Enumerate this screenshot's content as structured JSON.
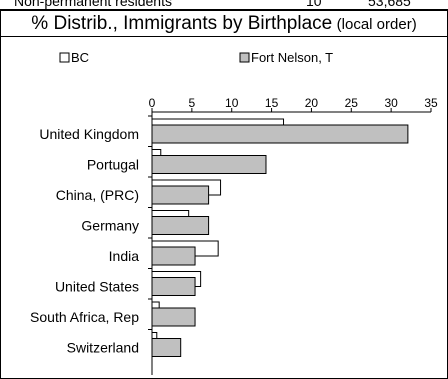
{
  "header_row": {
    "label": "Non-permanent residents",
    "value_local": "10",
    "value_bc": "53,685"
  },
  "chart_data": {
    "type": "bar",
    "orientation": "horizontal",
    "title": "% Distrib., Immigrants by Birthplace",
    "subtitle": "(local order)",
    "xlim": [
      0,
      35
    ],
    "xticks": [
      0,
      5,
      10,
      15,
      20,
      25,
      30,
      35
    ],
    "legend_position": "top",
    "categories": [
      "United Kingdom",
      "Portugal",
      "China, (PRC)",
      "Germany",
      "India",
      "United States",
      "South Africa, Rep",
      "Switzerland"
    ],
    "series": [
      {
        "name": "BC",
        "color": "#ffffff",
        "values": [
          16.5,
          1.1,
          8.6,
          4.6,
          8.3,
          6.1,
          0.9,
          0.6
        ]
      },
      {
        "name": "Fort Nelson, T",
        "color": "#c0c0c0",
        "values": [
          32.1,
          14.3,
          7.1,
          7.1,
          5.4,
          5.4,
          5.4,
          3.6
        ]
      }
    ]
  }
}
